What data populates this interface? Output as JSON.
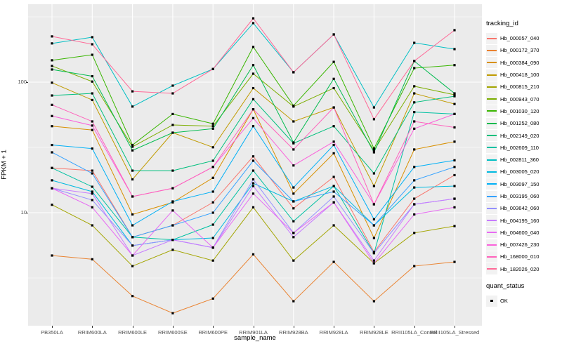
{
  "panel": {
    "bg": "#EBEBEB",
    "grid_color": "#FFFFFF",
    "tick_color": "#333333",
    "text_color": "#4D4D4D"
  },
  "legend": {
    "tracking_title": "tracking_id",
    "quant_title": "quant_status",
    "quant_value": "OK",
    "quant_marker_color": "#000000"
  },
  "chart_data": {
    "type": "line",
    "title": "",
    "xlabel": "sample_name",
    "ylabel": "FPKM + 1",
    "y_scale": "log10",
    "y_ticks": [
      10,
      100
    ],
    "y_minor_gridlines": [
      3.162,
      31.62,
      316.2
    ],
    "ylim": [
      1.36,
      395
    ],
    "grid": true,
    "legend_position": "right",
    "point_marker": "small-black-square",
    "categories": [
      "PB350LA",
      "RRIM600LA",
      "RRIM600LE",
      "RRIM600SE",
      "RRIM600PE",
      "RRIM901LA",
      "RRIM928BA",
      "RRIM928LA",
      "RRIM928LE",
      "RRII105LA_Control",
      "RRII105LA_Stressed"
    ],
    "series": [
      {
        "name": "Hb_000057_040",
        "color": "#F8766D",
        "values": [
          22,
          21,
          6.5,
          8,
          12,
          27,
          10.8,
          18.8,
          5,
          12.8,
          19.4
        ]
      },
      {
        "name": "Hb_000172_370",
        "color": "#EA8331",
        "values": [
          4.7,
          4.4,
          2.3,
          1.7,
          2.2,
          4.8,
          2.1,
          4.2,
          2.1,
          3.9,
          4.2
        ]
      },
      {
        "name": "Hb_000384_090",
        "color": "#D89000",
        "values": [
          46,
          43,
          9.7,
          12,
          18.5,
          62,
          14,
          28.5,
          6.4,
          30.5,
          35
        ]
      },
      {
        "name": "Hb_000418_100",
        "color": "#C09B00",
        "values": [
          99,
          73,
          18,
          41,
          31.7,
          90,
          50,
          64,
          16,
          82,
          68
        ]
      },
      {
        "name": "Hb_000815_210",
        "color": "#A3A500",
        "values": [
          11.5,
          8,
          3.9,
          5.2,
          4.3,
          11,
          4.3,
          8,
          4.1,
          7,
          7.9
        ]
      },
      {
        "name": "Hb_000943_070",
        "color": "#7CAE00",
        "values": [
          133,
          101,
          32,
          47,
          46,
          116,
          65,
          90,
          30,
          93,
          80
        ]
      },
      {
        "name": "Hb_001030_120",
        "color": "#39B600",
        "values": [
          147,
          162,
          33,
          57,
          48,
          186,
          66,
          143,
          31,
          128,
          135
        ]
      },
      {
        "name": "Hb_001252_080",
        "color": "#00BB4E",
        "values": [
          125,
          111,
          30,
          41,
          44,
          135,
          34.5,
          106,
          29,
          145,
          82
        ]
      },
      {
        "name": "Hb_002149_020",
        "color": "#00BF7D",
        "values": [
          79,
          82,
          21,
          21,
          25,
          74,
          34,
          46,
          20,
          70,
          78
        ]
      },
      {
        "name": "Hb_002609_110",
        "color": "#00C1A3",
        "values": [
          22,
          15.8,
          6.5,
          6.2,
          8.1,
          21,
          8.6,
          16,
          4.9,
          59,
          57
        ]
      },
      {
        "name": "Hb_002811_360",
        "color": "#00BFC4",
        "values": [
          198,
          221,
          65,
          94,
          126,
          283,
          119,
          232,
          64,
          200,
          179
        ]
      },
      {
        "name": "Hb_003005_020",
        "color": "#00BAE0",
        "values": [
          17.7,
          14.5,
          5.6,
          6.2,
          6.4,
          16.8,
          12.2,
          16,
          8,
          15.6,
          16
        ]
      },
      {
        "name": "Hb_003097_150",
        "color": "#00B0F6",
        "values": [
          33,
          31,
          8,
          12.2,
          14.5,
          46,
          15.6,
          33,
          8.9,
          22.4,
          25.2
        ]
      },
      {
        "name": "Hb_003195_060",
        "color": "#35A2FF",
        "values": [
          29,
          20,
          6.5,
          8,
          10,
          25,
          12.2,
          14.5,
          8,
          17.7,
          22.4
        ]
      },
      {
        "name": "Hb_003642_060",
        "color": "#9590FF",
        "values": [
          15.4,
          12.5,
          5.6,
          6.2,
          5.4,
          18,
          7,
          13.3,
          4.9,
          11.6,
          12.8
        ]
      },
      {
        "name": "Hb_004195_160",
        "color": "#C77CFF",
        "values": [
          15.4,
          14,
          4.7,
          6.2,
          5.4,
          16,
          6.5,
          12,
          4.3,
          11.6,
          12.8
        ]
      },
      {
        "name": "Hb_004600_040",
        "color": "#E76BF3",
        "values": [
          15.4,
          11,
          4.7,
          10.4,
          5.4,
          14,
          7,
          12,
          4.1,
          9.7,
          11
        ]
      },
      {
        "name": "Hb_007426_230",
        "color": "#FA62DB",
        "values": [
          55,
          46.5,
          13.3,
          15.4,
          22.4,
          53,
          23,
          35,
          11.6,
          44,
          57
        ]
      },
      {
        "name": "Hb_168000_010",
        "color": "#FF62BC",
        "values": [
          67,
          50,
          13.3,
          15.4,
          22.4,
          62,
          30.5,
          64,
          11.6,
          50,
          45
        ]
      },
      {
        "name": "Hb_182026_020",
        "color": "#FF6A98",
        "values": [
          224,
          195,
          85,
          82,
          126,
          308,
          119,
          232,
          52,
          145,
          250
        ]
      }
    ]
  }
}
